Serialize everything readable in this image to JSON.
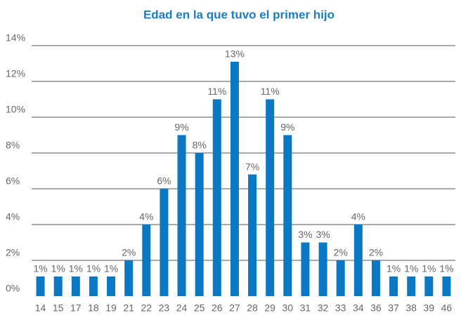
{
  "chart_data": {
    "type": "bar",
    "title": "Edad en la que tuvo el primer hijo",
    "categories": [
      "14",
      "15",
      "17",
      "18",
      "19",
      "21",
      "22",
      "23",
      "24",
      "25",
      "26",
      "27",
      "28",
      "29",
      "30",
      "31",
      "32",
      "33",
      "34",
      "36",
      "37",
      "38",
      "39",
      "46"
    ],
    "values": [
      1.1,
      1.1,
      1.1,
      1.1,
      1.1,
      2.0,
      4.0,
      6.0,
      9.0,
      8.0,
      11.0,
      13.1,
      6.8,
      11.0,
      9.0,
      3.0,
      3.0,
      2.0,
      4.0,
      2.0,
      1.1,
      1.1,
      1.1,
      1.1
    ],
    "value_labels": [
      "1%",
      "1%",
      "1%",
      "1%",
      "1%",
      "2%",
      "4%",
      "6%",
      "9%",
      "8%",
      "11%",
      "13%",
      "7%",
      "11%",
      "9%",
      "3%",
      "3%",
      "2%",
      "4%",
      "2%",
      "1%",
      "1%",
      "1%",
      "1%"
    ],
    "color": "#0b78c3",
    "ylim": [
      0,
      14
    ],
    "yticks": [
      {
        "value": 0,
        "label": "0%"
      },
      {
        "value": 2,
        "label": "2%"
      },
      {
        "value": 4,
        "label": "4%"
      },
      {
        "value": 6,
        "label": "6%"
      },
      {
        "value": 8,
        "label": "8%"
      },
      {
        "value": 10,
        "label": "10%"
      },
      {
        "value": 12,
        "label": "12%"
      },
      {
        "value": 14,
        "label": "14%"
      }
    ],
    "grid": true
  }
}
